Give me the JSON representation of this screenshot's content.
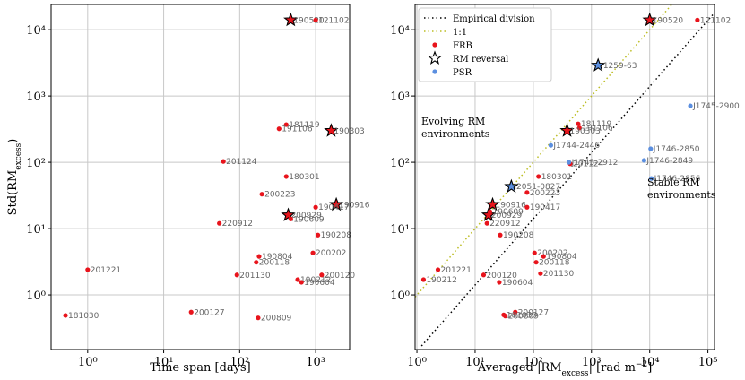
{
  "chart_data": [
    {
      "type": "scatter",
      "xlog": true,
      "ylog": true,
      "grid": true,
      "xlim": [
        0.33,
        2800
      ],
      "ylim": [
        0.15,
        24000
      ],
      "xticks": [
        {
          "value": 1,
          "label": "10⁰"
        },
        {
          "value": 10,
          "label": "10¹"
        },
        {
          "value": 100,
          "label": "10²"
        },
        {
          "value": 1000,
          "label": "10³"
        }
      ],
      "yticks": [
        {
          "value": 1,
          "label": "10⁰"
        },
        {
          "value": 10,
          "label": "10¹"
        },
        {
          "value": 100,
          "label": "10²"
        },
        {
          "value": 1000,
          "label": "10³"
        },
        {
          "value": 10000,
          "label": "10⁴"
        }
      ],
      "xlabel": [
        {
          "text": "Time span [days]"
        }
      ],
      "ylabel": [
        {
          "text": "Std(RM"
        },
        {
          "text": "excess",
          "shift": "sub"
        },
        {
          "text": ")"
        }
      ],
      "series": [
        {
          "color": "#e8141c",
          "marker": "dot",
          "labels": [
            "190520",
            "121102",
            "181119",
            "191106",
            "190303",
            "201124",
            "180301",
            "200223",
            "190916",
            "190417",
            "200929",
            "190609",
            "220912",
            "190208",
            "200202",
            "190804",
            "200118",
            "201130",
            "201221",
            "190212",
            "200120",
            "190604",
            "200127",
            "200809",
            "181030"
          ],
          "x": [
            470,
            1000,
            410,
            330,
            1600,
            61,
            410,
            196,
            1870,
            1000,
            435,
            470,
            54,
            1070,
            920,
            180,
            165,
            92,
            1.0,
            580,
            1200,
            650,
            23,
            175,
            0.51
          ],
          "values": [
            14000,
            14000,
            370,
            320,
            300,
            103,
            61,
            33,
            23,
            21,
            16,
            14,
            12,
            8,
            4.3,
            3.8,
            3.1,
            2.0,
            2.4,
            1.7,
            2.0,
            1.55,
            0.55,
            0.45,
            0.49
          ],
          "reversal": [
            true,
            false,
            false,
            false,
            true,
            false,
            false,
            false,
            true,
            false,
            true,
            false,
            false,
            false,
            false,
            false,
            false,
            false,
            false,
            false,
            false,
            false,
            false,
            false,
            false
          ]
        }
      ]
    },
    {
      "type": "scatter",
      "xlog": true,
      "ylog": true,
      "grid": true,
      "xlim": [
        0.93,
        130000
      ],
      "ylim": [
        0.15,
        24000
      ],
      "xticks": [
        {
          "value": 1,
          "label": "10⁰"
        },
        {
          "value": 10,
          "label": "10¹"
        },
        {
          "value": 100,
          "label": "10²"
        },
        {
          "value": 1000,
          "label": "10³"
        },
        {
          "value": 10000,
          "label": "10⁴"
        },
        {
          "value": 100000,
          "label": "10⁵"
        }
      ],
      "yticks": [
        {
          "value": 1,
          "label": "10⁰"
        },
        {
          "value": 10,
          "label": "10¹"
        },
        {
          "value": 100,
          "label": "10²"
        },
        {
          "value": 1000,
          "label": "10³"
        },
        {
          "value": 10000,
          "label": "10⁴"
        }
      ],
      "xlabel": [
        {
          "text": "Averaged |RM"
        },
        {
          "text": "excess",
          "shift": "sub"
        },
        {
          "text": "| [rad m"
        },
        {
          "text": "−2",
          "shift": "super"
        },
        {
          "text": "]"
        }
      ],
      "lines": [
        {
          "name": "Empirical division",
          "color": "#000000",
          "x": [
            1.2,
            130000
          ],
          "values": [
            0.17,
            18000
          ]
        },
        {
          "name": "1:1",
          "color": "#bcbd22",
          "x": [
            0.93,
            24000
          ],
          "values": [
            0.93,
            24000
          ]
        }
      ],
      "reversal_name": "RM reversal",
      "series": [
        {
          "name": "FRB",
          "color": "#e8141c",
          "marker": "dot",
          "labels": [
            "190520",
            "121102",
            "181119",
            "191106",
            "190303",
            "201124",
            "180301",
            "200223",
            "190916",
            "190417",
            "200929",
            "190609",
            "220912",
            "190208",
            "200202",
            "190804",
            "200118",
            "201130",
            "201221",
            "190212",
            "200120",
            "190604",
            "200127",
            "181030",
            "200809"
          ],
          "x": [
            10000,
            66000,
            590,
            620,
            380,
            430,
            123,
            78,
            20,
            78,
            17,
            18,
            16,
            27,
            105,
            150,
            112,
            133,
            2.3,
            1.3,
            14,
            26,
            49,
            31,
            33
          ],
          "values": [
            14000,
            14000,
            380,
            330,
            300,
            95,
            61,
            35,
            23,
            21,
            16,
            18,
            12,
            8,
            4.3,
            3.8,
            3.1,
            2.1,
            2.4,
            1.7,
            2.0,
            1.55,
            0.55,
            0.5,
            0.48
          ],
          "reversal": [
            true,
            false,
            false,
            false,
            true,
            false,
            false,
            false,
            true,
            false,
            true,
            false,
            false,
            false,
            false,
            false,
            false,
            false,
            false,
            false,
            false,
            false,
            false,
            false,
            false
          ]
        },
        {
          "name": "PSR",
          "color": "#5b8fe0",
          "marker": "dot",
          "labels": [
            "J1259-63",
            "J1745-2900",
            "J1744-2446",
            "J1746-2850",
            "J1746-2849",
            "J1745-2912",
            "J1746-2856",
            "J2051-0827"
          ],
          "x": [
            1300,
            50000,
            200,
            10400,
            8000,
            410,
            10700,
            42
          ],
          "values": [
            2900,
            710,
            180,
            160,
            107,
            100,
            57,
            43
          ],
          "reversal": [
            true,
            false,
            false,
            false,
            false,
            false,
            false,
            true
          ]
        }
      ],
      "annotations": [
        [
          "Evolving RM",
          "environments"
        ],
        [
          "Stable RM",
          "environments"
        ]
      ]
    }
  ]
}
